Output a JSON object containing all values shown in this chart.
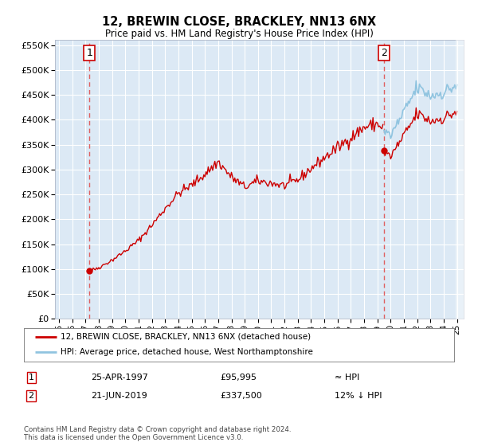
{
  "title": "12, BREWIN CLOSE, BRACKLEY, NN13 6NX",
  "subtitle": "Price paid vs. HM Land Registry's House Price Index (HPI)",
  "legend_entry1": "12, BREWIN CLOSE, BRACKLEY, NN13 6NX (detached house)",
  "legend_entry2": "HPI: Average price, detached house, West Northamptonshire",
  "annotation1_label": "1",
  "annotation1_date": "25-APR-1997",
  "annotation1_price": "£95,995",
  "annotation1_hpi": "≈ HPI",
  "annotation2_label": "2",
  "annotation2_date": "21-JUN-2019",
  "annotation2_price": "£337,500",
  "annotation2_hpi": "12% ↓ HPI",
  "footer": "Contains HM Land Registry data © Crown copyright and database right 2024.\nThis data is licensed under the Open Government Licence v3.0.",
  "sale1_year": 1997.3,
  "sale1_value": 95995,
  "sale2_year": 2019.47,
  "sale2_value": 337500,
  "hpi_color": "#90c4e0",
  "price_color": "#cc0000",
  "dashed_line_color": "#e05050",
  "plot_bg_color": "#dce9f5",
  "ylim_min": 0,
  "ylim_max": 560000,
  "xlim_min": 1994.7,
  "xlim_max": 2025.5
}
